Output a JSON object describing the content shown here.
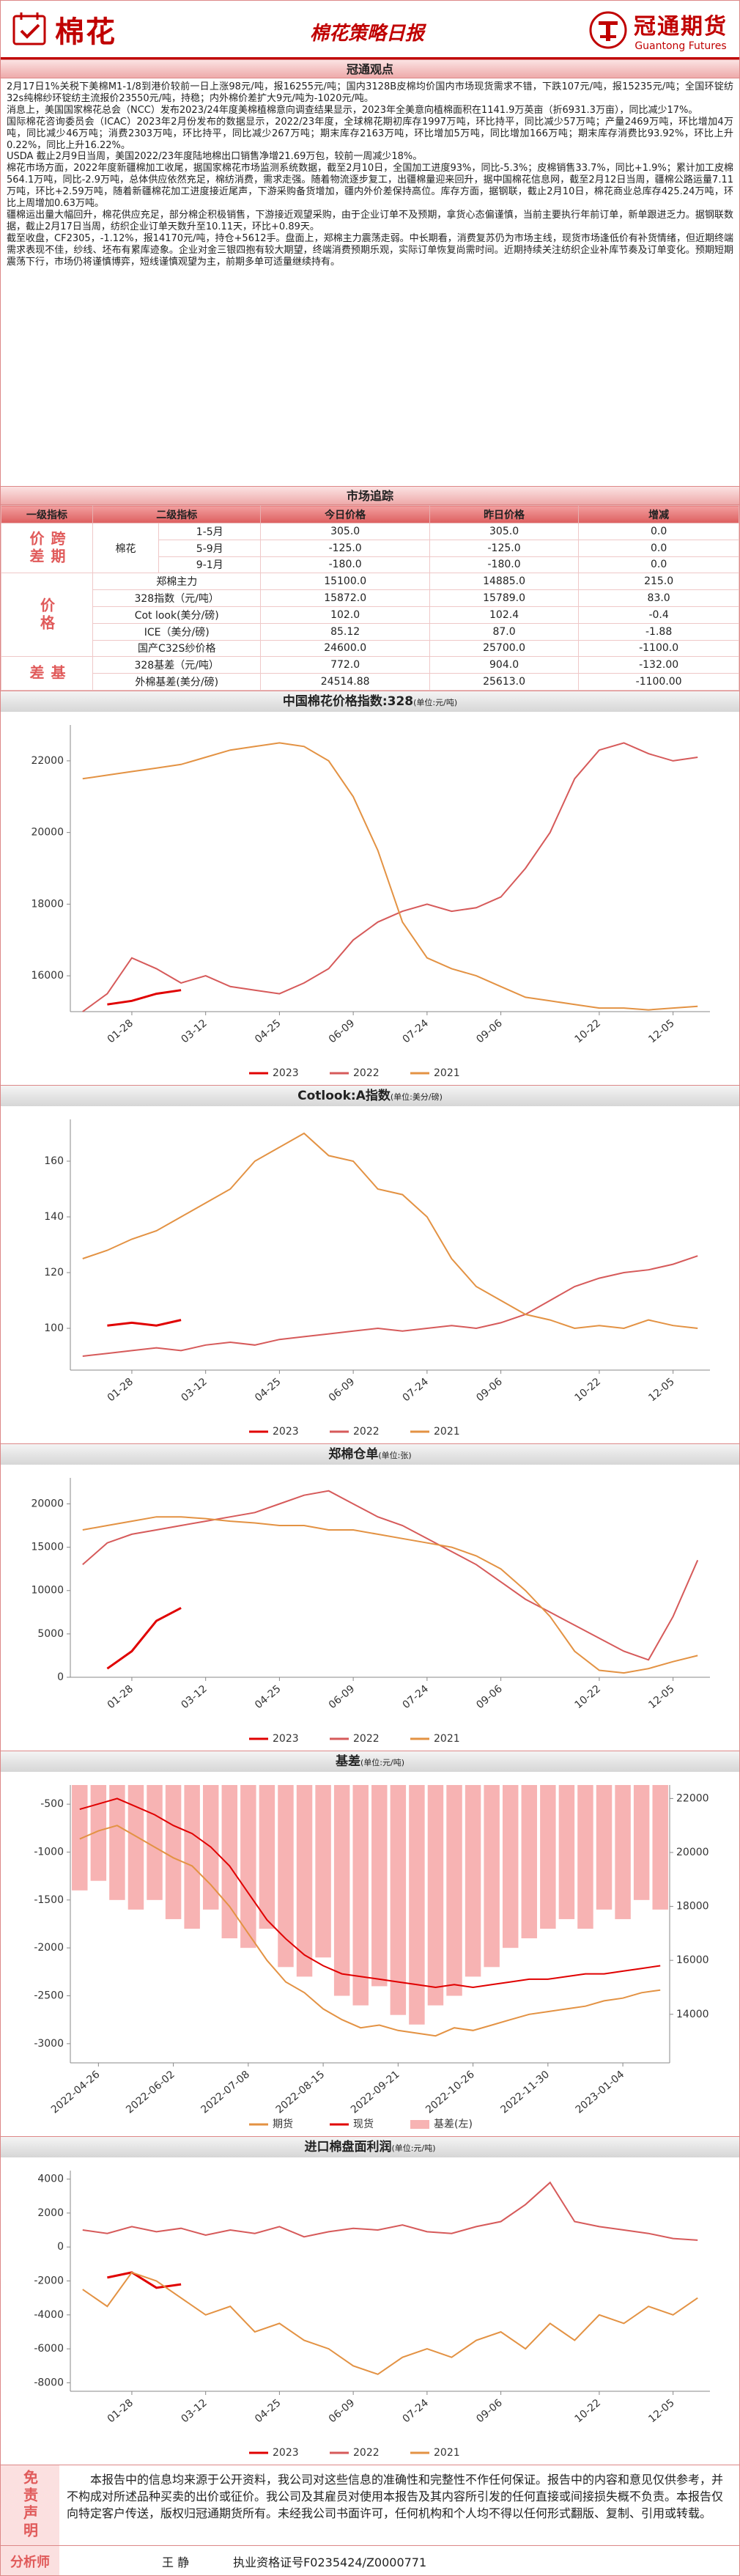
{
  "header": {
    "logo": "棉花",
    "title": "棉花策略日报",
    "company": "冠通期货",
    "company_en": "Guantong Futures"
  },
  "sections": {
    "view_title": "冠通观点",
    "paragraphs": [
      "2月17日1%关税下美棉M1-1/8到港价较前一日上涨98元/吨，报16255元/吨；国内3128B皮棉均价国内市场现货需求不错，下跌107元/吨，报15235元/吨；全国环锭纺32s纯棉纱环锭纺主流报价23550元/吨，持稳；内外棉价差扩大9元/吨为-1020元/吨。",
      "消息上，美国国家棉花总会（NCC）发布2023/24年度美棉植棉意向调查结果显示，2023年全美意向植棉面积在1141.9万英亩（折6931.3万亩），同比减少17%。",
      "国际棉花咨询委员会（ICAC）2023年2月份发布的数据显示，2022/23年度，全球棉花期初库存1997万吨，环比持平，同比减少57万吨；产量2469万吨，环比增加4万吨，同比减少46万吨；消费2303万吨，环比持平，同比减少267万吨；期末库存2163万吨，环比增加5万吨，同比增加166万吨；期末库存消费比93.92%，环比上升0.22%，同比上升16.22%。",
      "USDA 截止2月9日当周，美国2022/23年度陆地棉出口销售净增21.69万包，较前一周减少18%。",
      "棉花市场方面，2022年度新疆棉加工收尾，据国家棉花市场监测系统数据，截至2月10日，全国加工进度93%，同比-5.3%；皮棉销售33.7%，同比+1.9%；累计加工皮棉564.1万吨，同比-2.9万吨，总体供应依然充足，棉纺消费，需求走强。随着物流逐步复工，出疆棉量迎来回升，据中国棉花信息网，截至2月12日当周，疆棉公路运量7.11万吨，环比+2.59万吨，随着新疆棉花加工进度接近尾声，下游采购备货增加，疆内外价差保持高位。库存方面，据钢联，截止2月10日，棉花商业总库存425.24万吨，环比上周增加0.63万吨。",
      "疆棉运出量大幅回升，棉花供应充足，部分棉企积极销售，下游接近观望采购，由于企业订单不及预期，拿货心态偏谨慎，当前主要执行年前订单，新单跟进乏力。据钢联数据，截止2月17日当周，纺织企业订单天数升至10.11天，环比+0.89天。",
      "截至收盘，CF2305，-1.12%，报14170元/吨，持仓+5612手。盘面上，郑棉主力震荡走弱。中长期看，消费复苏仍为市场主线，现货市场逢低价有补货情绪，但近期终端需求表现不佳，纱线、坯布有累库迹象。企业对金三银四抱有较大期望，终端消费预期乐观，实际订单恢复尚需时间。近期持续关注纺织企业补库节奏及订单变化。预期短期震荡下行，市场仍将谨慎博弈，短线谨慎观望为主，前期多单可适量继续持有。"
    ],
    "market_title": "市场追踪"
  },
  "table": {
    "header": [
      "一级指标",
      "二级指标",
      "今日价格",
      "昨日价格",
      "增减"
    ],
    "groups": [
      {
        "name": "跨期价差",
        "sub": "棉花",
        "rows": [
          [
            "1-5月",
            "305.0",
            "305.0",
            "0.0"
          ],
          [
            "5-9月",
            "-125.0",
            "-125.0",
            "0.0"
          ],
          [
            "9-1月",
            "-180.0",
            "-180.0",
            "0.0"
          ]
        ]
      },
      {
        "name": "价格",
        "rows": [
          [
            "郑棉主力",
            "15100.0",
            "14885.0",
            "215.0"
          ],
          [
            "328指数（元/吨）",
            "15872.0",
            "15789.0",
            "83.0"
          ],
          [
            "Cot look(美分/磅)",
            "102.0",
            "102.4",
            "-0.4"
          ],
          [
            "ICE（美分/磅)",
            "85.12",
            "87.0",
            "-1.88"
          ],
          [
            "国产C32S纱价格",
            "24600.0",
            "25700.0",
            "-1100.0"
          ]
        ]
      },
      {
        "name": "基差",
        "rows": [
          [
            "328基差（元/吨）",
            "772.0",
            "904.0",
            "-132.00"
          ],
          [
            "外棉基差(美分/磅)",
            "24514.88",
            "25613.0",
            "-1100.00"
          ]
        ]
      }
    ]
  },
  "chart_data": [
    {
      "type": "line",
      "title": "中国棉花价格指数:328",
      "unit": "(单位:元/吨)",
      "categories": [
        null,
        null,
        "01-28",
        null,
        null,
        "03-12",
        null,
        null,
        "04-25",
        null,
        null,
        "06-09",
        null,
        null,
        "07-24",
        null,
        null,
        "09-06",
        null,
        null,
        null,
        "10-22",
        null,
        null,
        "12-05",
        null
      ],
      "ylim": [
        15000,
        23000
      ],
      "yticks": [
        16000,
        18000,
        20000,
        22000
      ],
      "grid": false,
      "series": [
        {
          "name": "2023",
          "color": "#e00000",
          "values": [
            null,
            15200,
            15300,
            15500,
            15600,
            null,
            null,
            null,
            null,
            null,
            null,
            null,
            null,
            null,
            null,
            null,
            null,
            null,
            null,
            null,
            null,
            null,
            null,
            null,
            null,
            null
          ]
        },
        {
          "name": "2022",
          "color": "#d65a5a",
          "values": [
            15000,
            15500,
            16500,
            16200,
            15800,
            16000,
            15700,
            15600,
            15500,
            15800,
            16200,
            17000,
            17500,
            17800,
            18000,
            17800,
            17900,
            18200,
            19000,
            20000,
            21500,
            22300,
            22500,
            22200,
            22000,
            22100
          ]
        },
        {
          "name": "2021",
          "color": "#e39243",
          "values": [
            21500,
            21600,
            21700,
            21800,
            21900,
            22100,
            22300,
            22400,
            22500,
            22400,
            22000,
            21000,
            19500,
            17500,
            16500,
            16200,
            16000,
            15700,
            15400,
            15300,
            15200,
            15100,
            15100,
            15050,
            15100,
            15150
          ]
        }
      ]
    },
    {
      "type": "line",
      "title": "Cotlook:A指数",
      "unit": "(单位:美分/磅)",
      "categories": [
        null,
        null,
        "01-28",
        null,
        null,
        "03-12",
        null,
        null,
        "04-25",
        null,
        null,
        "06-09",
        null,
        null,
        "07-24",
        null,
        null,
        "09-06",
        null,
        null,
        null,
        "10-22",
        null,
        null,
        "12-05",
        null
      ],
      "ylim": [
        85,
        175
      ],
      "yticks": [
        100,
        120,
        140,
        160
      ],
      "grid": false,
      "series": [
        {
          "name": "2023",
          "color": "#e00000",
          "values": [
            null,
            101,
            102,
            101,
            103,
            null,
            null,
            null,
            null,
            null,
            null,
            null,
            null,
            null,
            null,
            null,
            null,
            null,
            null,
            null,
            null,
            null,
            null,
            null,
            null,
            null
          ]
        },
        {
          "name": "2022",
          "color": "#d65a5a",
          "values": [
            90,
            91,
            92,
            93,
            92,
            94,
            95,
            94,
            96,
            97,
            98,
            99,
            100,
            99,
            100,
            101,
            100,
            102,
            105,
            110,
            115,
            118,
            120,
            121,
            123,
            126
          ]
        },
        {
          "name": "2021",
          "color": "#e39243",
          "values": [
            125,
            128,
            132,
            135,
            140,
            145,
            150,
            160,
            165,
            170,
            162,
            160,
            150,
            148,
            140,
            125,
            115,
            110,
            105,
            103,
            100,
            101,
            100,
            103,
            101,
            100
          ]
        }
      ]
    },
    {
      "type": "line",
      "title": "郑棉仓单",
      "unit": "(单位:张)",
      "categories": [
        null,
        null,
        "01-28",
        null,
        null,
        "03-12",
        null,
        null,
        "04-25",
        null,
        null,
        "06-09",
        null,
        null,
        "07-24",
        null,
        null,
        "09-06",
        null,
        null,
        null,
        "10-22",
        null,
        null,
        "12-05",
        null
      ],
      "ylim": [
        0,
        23000
      ],
      "yticks": [
        0,
        5000,
        10000,
        15000,
        20000
      ],
      "grid": false,
      "series": [
        {
          "name": "2023",
          "color": "#e00000",
          "values": [
            null,
            1000,
            3000,
            6500,
            8000,
            null,
            null,
            null,
            null,
            null,
            null,
            null,
            null,
            null,
            null,
            null,
            null,
            null,
            null,
            null,
            null,
            null,
            null,
            null,
            null,
            null
          ]
        },
        {
          "name": "2022",
          "color": "#d65a5a",
          "values": [
            13000,
            15500,
            16500,
            17000,
            17500,
            18000,
            18500,
            19000,
            20000,
            21000,
            21500,
            20000,
            18500,
            17500,
            16000,
            14500,
            13000,
            11000,
            9000,
            7500,
            6000,
            4500,
            3000,
            2000,
            7000,
            13500
          ]
        },
        {
          "name": "2021",
          "color": "#e39243",
          "values": [
            17000,
            17500,
            18000,
            18500,
            18500,
            18300,
            18000,
            17800,
            17500,
            17500,
            17000,
            17000,
            16500,
            16000,
            15500,
            15000,
            14000,
            12500,
            10000,
            7000,
            3000,
            800,
            500,
            1000,
            1800,
            2500
          ]
        }
      ]
    },
    {
      "type": "combo",
      "title": "基差",
      "unit": "(单位:元/吨)",
      "categories": [
        null,
        "2022-04-26",
        null,
        null,
        null,
        "2022-06-02",
        null,
        null,
        null,
        "2022-07-08",
        null,
        null,
        null,
        "2022-08-15",
        null,
        null,
        null,
        "2022-09-21",
        null,
        null,
        null,
        "2022-10-26",
        null,
        null,
        null,
        "2022-11-30",
        null,
        null,
        null,
        "2023-01-04",
        null,
        null
      ],
      "ylim": [
        -3200,
        -300
      ],
      "yticks": [
        -3000,
        -2500,
        -2000,
        -1500,
        -1000,
        -500
      ],
      "y2lim": [
        12200,
        22500
      ],
      "y2ticks": [
        14000,
        16000,
        18000,
        20000,
        22000
      ],
      "grid": false,
      "series": [
        {
          "name": "期货",
          "color": "#e39243",
          "axis": "y2",
          "values": [
            20500,
            20800,
            21000,
            20600,
            20200,
            19800,
            19500,
            18800,
            18000,
            17000,
            16000,
            15200,
            14800,
            14200,
            13800,
            13500,
            13600,
            13400,
            13300,
            13200,
            13500,
            13400,
            13600,
            13800,
            14000,
            14100,
            14200,
            14300,
            14500,
            14600,
            14800,
            14900
          ]
        },
        {
          "name": "现货",
          "color": "#e00000",
          "axis": "y2",
          "values": [
            21600,
            21800,
            22000,
            21700,
            21400,
            21000,
            20700,
            20200,
            19500,
            18500,
            17500,
            16800,
            16200,
            15800,
            15500,
            15400,
            15300,
            15200,
            15100,
            15000,
            15100,
            15000,
            15100,
            15200,
            15300,
            15300,
            15400,
            15500,
            15500,
            15600,
            15700,
            15800
          ]
        },
        {
          "name": "基差(左)",
          "color": "#f7b3b3",
          "kind": "bar",
          "values": [
            -1400,
            -1300,
            -1500,
            -1600,
            -1500,
            -1700,
            -1800,
            -1600,
            -1900,
            -2000,
            -1800,
            -2200,
            -2300,
            -2100,
            -2500,
            -2600,
            -2400,
            -2700,
            -2800,
            -2600,
            -2500,
            -2300,
            -2200,
            -2000,
            -1900,
            -1800,
            -1700,
            -1800,
            -1600,
            -1700,
            -1500,
            -1600
          ]
        }
      ]
    },
    {
      "type": "line",
      "title": "进口棉盘面利润",
      "unit": "(单位:元/吨)",
      "categories": [
        null,
        null,
        "01-28",
        null,
        null,
        "03-12",
        null,
        null,
        "04-25",
        null,
        null,
        "06-09",
        null,
        null,
        "07-24",
        null,
        null,
        "09-06",
        null,
        null,
        null,
        "10-22",
        null,
        null,
        "12-05",
        null
      ],
      "ylim": [
        -8500,
        4500
      ],
      "yticks": [
        -8000,
        -6000,
        -4000,
        -2000,
        0,
        2000,
        4000
      ],
      "grid": false,
      "series": [
        {
          "name": "2023",
          "color": "#e00000",
          "values": [
            null,
            -1800,
            -1500,
            -2400,
            -2200,
            null,
            null,
            null,
            null,
            null,
            null,
            null,
            null,
            null,
            null,
            null,
            null,
            null,
            null,
            null,
            null,
            null,
            null,
            null,
            null,
            null
          ]
        },
        {
          "name": "2022",
          "color": "#d65a5a",
          "values": [
            1000,
            800,
            1200,
            900,
            1100,
            700,
            1000,
            800,
            1200,
            600,
            900,
            1100,
            1000,
            1300,
            900,
            800,
            1200,
            1500,
            2500,
            3800,
            1500,
            1200,
            1000,
            800,
            500,
            400
          ]
        },
        {
          "name": "2021",
          "color": "#e39243",
          "values": [
            -2500,
            -3500,
            -1500,
            -2000,
            -3000,
            -4000,
            -3500,
            -5000,
            -4500,
            -5500,
            -6000,
            -7000,
            -7500,
            -6500,
            -6000,
            -6500,
            -5500,
            -5000,
            -6000,
            -4500,
            -5500,
            -4000,
            -4500,
            -3500,
            -4000,
            -3000
          ]
        }
      ]
    }
  ],
  "disclaimer": {
    "label": "免责声明",
    "text": "本报告中的信息均来源于公开资料，我公司对这些信息的准确性和完整性不作任何保证。报告中的内容和意见仅供参考，并不构成对所述品种买卖的出价或征价。我公司及其雇员对使用本报告及其内容所引发的任何直接或间接损失概不负责。本报告仅向特定客户传送，版权归冠通期货所有。未经我公司书面许可，任何机构和个人均不得以任何形式翻版、复制、引用或转载。"
  },
  "analyst": {
    "label": "分析师",
    "name": "王 静",
    "license": "执业资格证号F0235424/Z0000771"
  }
}
